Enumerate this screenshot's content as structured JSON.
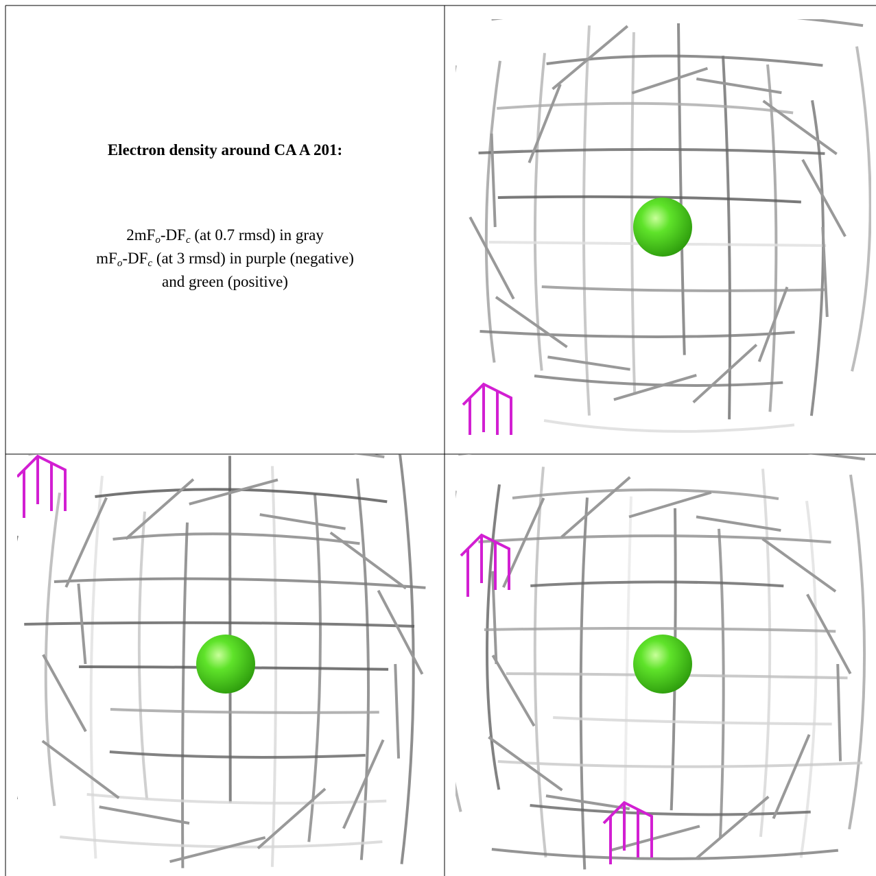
{
  "panel_text": {
    "title": "Electron density around CA A 201:",
    "lines": [
      [
        "2mF",
        "o",
        "-DF",
        "c",
        " (at 0.7 rmsd) in gray"
      ],
      [
        "mF",
        "o",
        "-DF",
        "c",
        " (at 3 rmsd) in purple (negative)"
      ],
      [
        "and green (positive)"
      ]
    ]
  }
}
